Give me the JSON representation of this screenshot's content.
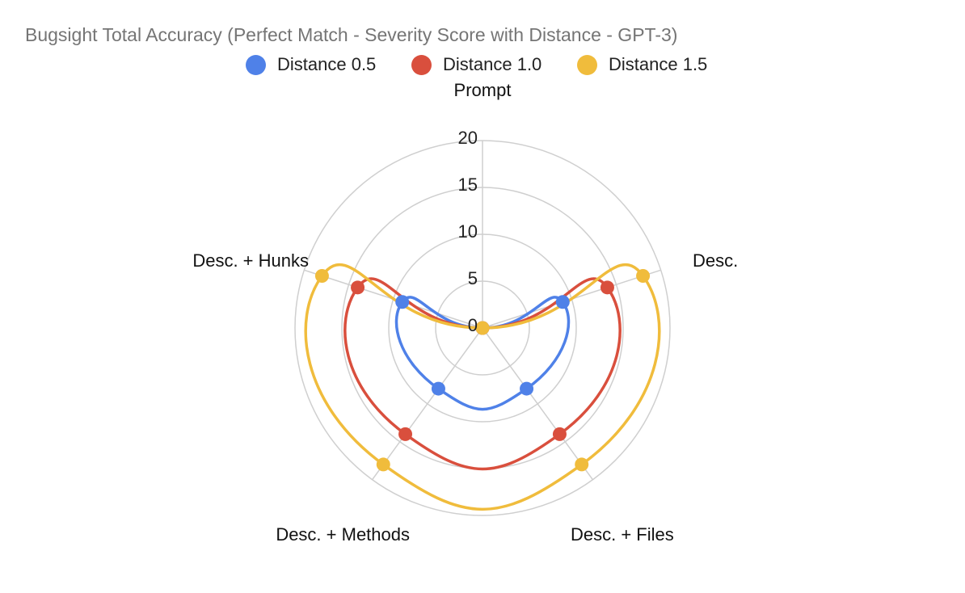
{
  "chart_data": {
    "type": "radar",
    "title": "Bugsight Total Accuracy (Perfect Match - Severity Score with Distance - GPT-3)",
    "axis_title": "Prompt",
    "categories": [
      "Prompt",
      "Desc.",
      "Desc. + Files",
      "Desc. + Methods",
      "Desc. + Hunks"
    ],
    "radial_ticks": [
      "0",
      "5",
      "10",
      "15",
      "20"
    ],
    "rlim": [
      0,
      20
    ],
    "grid": true,
    "legend_position": "top",
    "series": [
      {
        "name": "Distance 0.5",
        "color": "#4f81e8",
        "values": [
          0,
          9,
          8,
          8,
          9
        ]
      },
      {
        "name": "Distance 1.0",
        "color": "#d94f3d",
        "values": [
          0,
          14,
          14,
          14,
          14
        ]
      },
      {
        "name": "Distance 1.5",
        "color": "#f0bc3c",
        "values": [
          0,
          18,
          18,
          18,
          18
        ]
      }
    ]
  }
}
